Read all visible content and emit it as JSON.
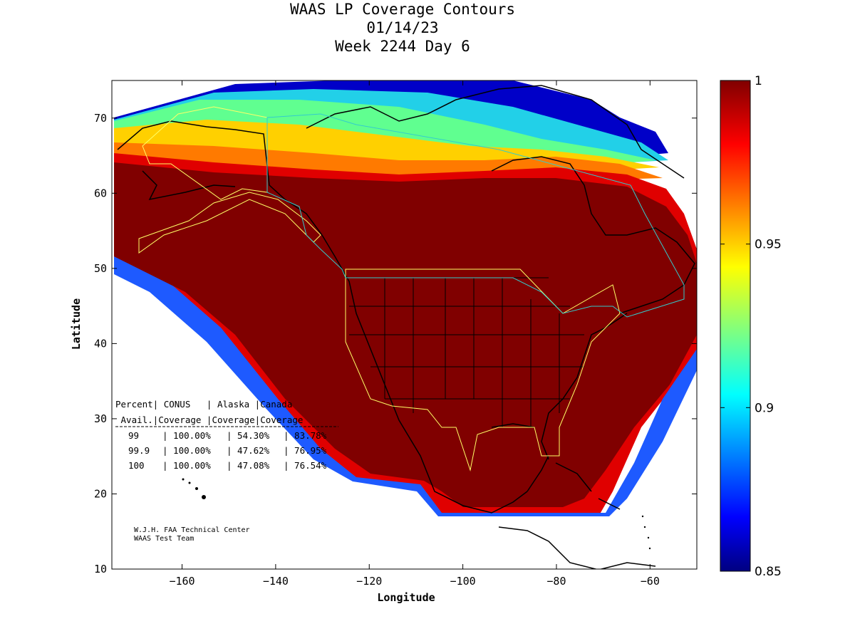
{
  "chart_data": {
    "type": "heatmap",
    "title": [
      "WAAS LP Coverage Contours",
      "01/14/23",
      "Week 2244 Day 6"
    ],
    "xlabel": "Longitude",
    "ylabel": "Latitude",
    "xlim": [
      -175,
      -50
    ],
    "ylim": [
      10,
      75
    ],
    "xticks": [
      -160,
      -140,
      -120,
      -100,
      -80,
      -60
    ],
    "yticks": [
      10,
      20,
      30,
      40,
      50,
      60,
      70
    ],
    "colorbar": {
      "range": [
        0.85,
        1
      ],
      "ticks": [
        0.85,
        0.9,
        0.95,
        1
      ],
      "tick_labels": [
        "0.85",
        "0.9",
        "0.95",
        "1"
      ],
      "colormap": "jet"
    },
    "table": {
      "header1": "Percent| CONUS   | Alaska |Canada",
      "header2": " Avail.|Coverage |Coverage|Coverage",
      "rows": [
        {
          "avail": "99",
          "conus": "100.00%",
          "alaska": "54.30%",
          "canada": "83.78%"
        },
        {
          "avail": "99.9",
          "conus": "100.00%",
          "alaska": "47.62%",
          "canada": "76.95%"
        },
        {
          "avail": "100",
          "conus": "100.00%",
          "alaska": "47.08%",
          "canada": "76.54%"
        }
      ]
    },
    "credits": [
      "W.J.H. FAA Technical Center",
      "WAAS Test Team"
    ]
  }
}
